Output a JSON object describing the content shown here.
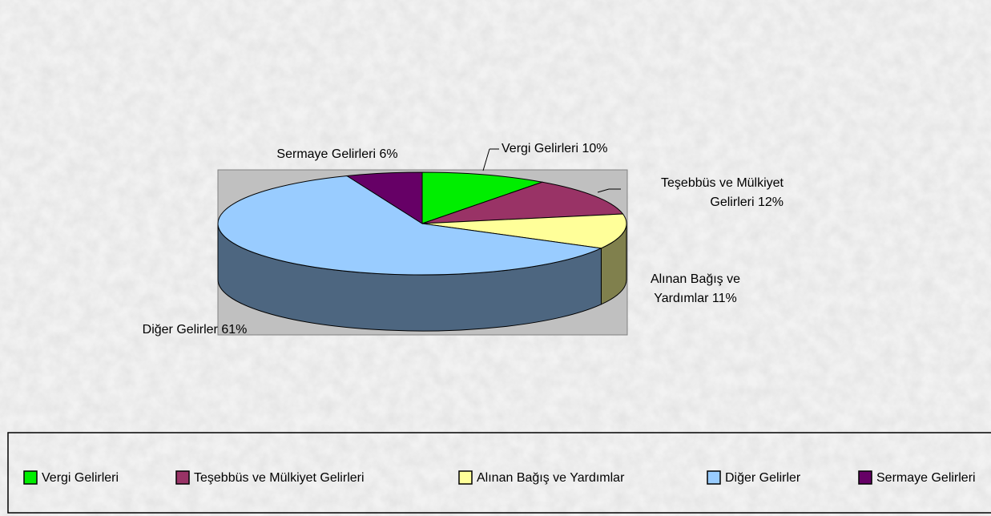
{
  "chart_data": {
    "type": "pie",
    "categories": [
      "Vergi Gelirleri",
      "Teşebbüs ve Mülkiyet Gelirleri",
      "Alınan Bağış ve Yardımlar",
      "Diğer Gelirler",
      "Sermaye Gelirleri"
    ],
    "values": [
      10,
      12,
      11,
      61,
      6
    ],
    "value_labels": [
      "Vergi Gelirleri 10%",
      "Teşebbüs ve Mülkiyet Gelirleri 12%",
      "Alınan Bağış ve Yardımlar 11%",
      "Diğer Gelirler 61%",
      "Sermaye Gelirleri 6%"
    ],
    "colors": [
      "#00ee00",
      "#993366",
      "#ffff99",
      "#99ccff",
      "#660066"
    ],
    "legend": "bottom"
  }
}
